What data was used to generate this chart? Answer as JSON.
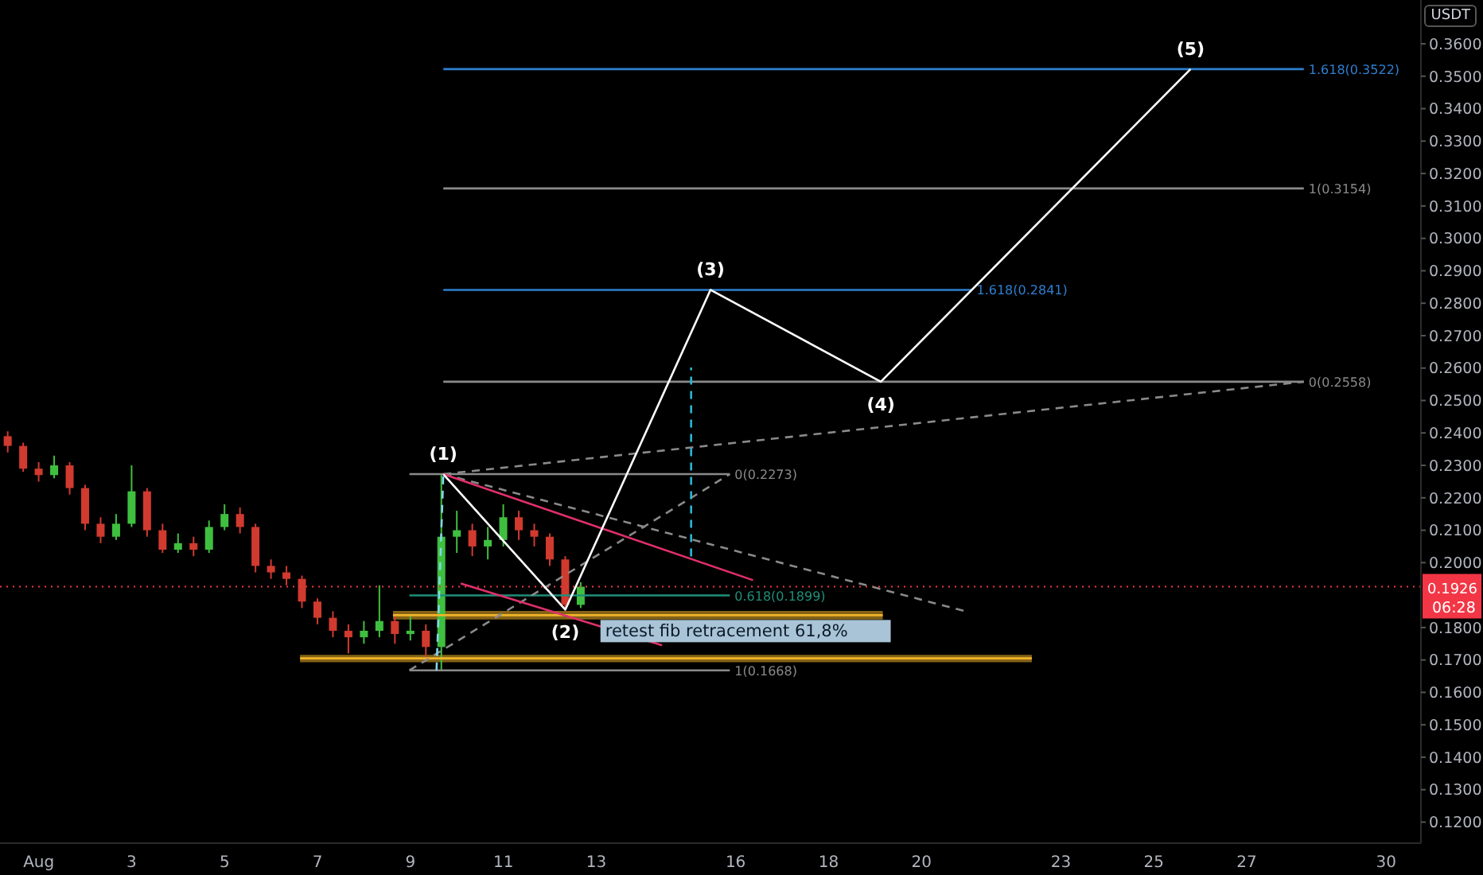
{
  "chart_data": {
    "type": "candlestick",
    "ylabel": "USDT",
    "x": [
      "--07-31T08:00",
      "--07-31T16:00",
      "--08-01T00:00",
      "--08-01T08:00",
      "--08-01T16:00",
      "--08-02T00:00",
      "--08-02T08:00",
      "--08-02T16:00",
      "--08-03T00:00",
      "--08-03T08:00",
      "--08-03T16:00",
      "--08-04T00:00",
      "--08-04T08:00",
      "--08-04T16:00",
      "--08-05T00:00",
      "--08-05T08:00",
      "--08-05T16:00",
      "--08-06T00:00",
      "--08-06T08:00",
      "--08-06T16:00",
      "--08-07T00:00",
      "--08-07T08:00",
      "--08-07T16:00",
      "--08-08T00:00",
      "--08-08T08:00",
      "--08-08T16:00",
      "--08-09T00:00",
      "--08-09T08:00",
      "--08-09T16:00",
      "--08-10T00:00",
      "--08-10T08:00",
      "--08-10T16:00",
      "--08-11T00:00",
      "--08-11T08:00",
      "--08-11T16:00",
      "--08-12T00:00",
      "--08-12T08:00",
      "--08-12T16:00"
    ],
    "ohlc": [
      [
        0.239,
        0.2405,
        0.234,
        0.236
      ],
      [
        0.236,
        0.237,
        0.228,
        0.229
      ],
      [
        0.229,
        0.231,
        0.225,
        0.227
      ],
      [
        0.227,
        0.233,
        0.226,
        0.23
      ],
      [
        0.23,
        0.231,
        0.221,
        0.223
      ],
      [
        0.223,
        0.224,
        0.21,
        0.212
      ],
      [
        0.212,
        0.214,
        0.206,
        0.208
      ],
      [
        0.208,
        0.215,
        0.207,
        0.212
      ],
      [
        0.212,
        0.23,
        0.211,
        0.222
      ],
      [
        0.222,
        0.223,
        0.208,
        0.21
      ],
      [
        0.21,
        0.212,
        0.203,
        0.204
      ],
      [
        0.204,
        0.209,
        0.203,
        0.206
      ],
      [
        0.206,
        0.208,
        0.202,
        0.204
      ],
      [
        0.204,
        0.213,
        0.203,
        0.211
      ],
      [
        0.211,
        0.218,
        0.21,
        0.215
      ],
      [
        0.215,
        0.217,
        0.209,
        0.211
      ],
      [
        0.211,
        0.212,
        0.197,
        0.199
      ],
      [
        0.199,
        0.201,
        0.195,
        0.197
      ],
      [
        0.197,
        0.199,
        0.193,
        0.195
      ],
      [
        0.195,
        0.196,
        0.186,
        0.188
      ],
      [
        0.188,
        0.189,
        0.181,
        0.183
      ],
      [
        0.183,
        0.185,
        0.177,
        0.179
      ],
      [
        0.179,
        0.181,
        0.172,
        0.177
      ],
      [
        0.177,
        0.182,
        0.175,
        0.179
      ],
      [
        0.179,
        0.193,
        0.177,
        0.182
      ],
      [
        0.182,
        0.184,
        0.175,
        0.178
      ],
      [
        0.178,
        0.184,
        0.176,
        0.179
      ],
      [
        0.179,
        0.181,
        0.17,
        0.174
      ],
      [
        0.174,
        0.2273,
        0.1668,
        0.208
      ],
      [
        0.208,
        0.216,
        0.203,
        0.21
      ],
      [
        0.21,
        0.212,
        0.202,
        0.205
      ],
      [
        0.205,
        0.211,
        0.201,
        0.207
      ],
      [
        0.207,
        0.218,
        0.205,
        0.214
      ],
      [
        0.214,
        0.216,
        0.207,
        0.21
      ],
      [
        0.21,
        0.212,
        0.205,
        0.208
      ],
      [
        0.208,
        0.209,
        0.199,
        0.201
      ],
      [
        0.201,
        0.202,
        0.1855,
        0.187
      ],
      [
        0.187,
        0.194,
        0.186,
        0.1926
      ]
    ],
    "colors": [
      "#d03a2f",
      "#d03a2f",
      "#d03a2f",
      "#3fbf3f",
      "#d03a2f",
      "#d03a2f",
      "#d03a2f",
      "#3fbf3f",
      "#3fbf3f",
      "#d03a2f",
      "#d03a2f",
      "#3fbf3f",
      "#d03a2f",
      "#3fbf3f",
      "#3fbf3f",
      "#d03a2f",
      "#d03a2f",
      "#d03a2f",
      "#d03a2f",
      "#d03a2f",
      "#d03a2f",
      "#d03a2f",
      "#d03a2f",
      "#3fbf3f",
      "#3fbf3f",
      "#d03a2f",
      "#3fbf3f",
      "#d03a2f",
      "#3fbf3f",
      "#3fbf3f",
      "#d03a2f",
      "#3fbf3f",
      "#3fbf3f",
      "#d03a2f",
      "#d03a2f",
      "#d03a2f",
      "#d03a2f",
      "#3fbf3f"
    ],
    "series": [
      {
        "type": "line",
        "color": "#f0b429",
        "line_style": "solid",
        "x": [
          "--08-06T15:00",
          "--08-22T09:00"
        ],
        "values": [
          0.1705,
          0.1705
        ],
        "lower": [
          0.1693,
          0.1693
        ],
        "upper": [
          0.1716,
          0.1716
        ]
      },
      {
        "type": "line",
        "color": "#f0b429",
        "line_style": "solid",
        "x": [
          "--08-08T15:00",
          "--08-19T04:00"
        ],
        "values": [
          0.1838,
          0.1838
        ],
        "lower": [
          0.1825,
          0.1825
        ],
        "upper": [
          0.1851,
          0.1851
        ]
      },
      {
        "type": "line",
        "color": "#2f7fd0",
        "line_style": "solid",
        "x": [
          "--08-09T17:00",
          "--08-28T05:30"
        ],
        "values": [
          0.3522,
          0.3522
        ],
        "value_labels": [
          null,
          "1.618(0.3522)"
        ]
      },
      {
        "type": "line",
        "color": "#8a8a8a",
        "line_style": "solid",
        "x": [
          "--08-09T17:00",
          "--08-28T05:30"
        ],
        "values": [
          0.3154,
          0.3154
        ],
        "value_labels": [
          null,
          "1(0.3154)"
        ]
      },
      {
        "type": "line",
        "color": "#2f7fd0",
        "line_style": "solid",
        "x": [
          "--08-09T17:00",
          "--08-21T02:00"
        ],
        "values": [
          0.2841,
          0.2841
        ],
        "value_labels": [
          null,
          "1.618(0.2841)"
        ]
      },
      {
        "type": "line",
        "color": "#8a8a8a",
        "line_style": "solid",
        "x": [
          "--08-09T17:00",
          "--08-28T05:30"
        ],
        "values": [
          0.2558,
          0.2558
        ],
        "value_labels": [
          null,
          "0(0.2558)"
        ]
      },
      {
        "type": "line",
        "color": "#8a8a8a",
        "line_style": "solid",
        "x": [
          "--08-08T23:30",
          "--08-15T21:00"
        ],
        "values": [
          0.2273,
          0.2273
        ],
        "value_labels": [
          null,
          "0(0.2273)"
        ]
      },
      {
        "type": "line",
        "color": "#1f8f7a",
        "line_style": "solid",
        "x": [
          "--08-08T23:30",
          "--08-15T21:00"
        ],
        "values": [
          0.1899,
          0.1899
        ],
        "value_labels": [
          null,
          "0.618(0.1899)"
        ]
      },
      {
        "type": "line",
        "color": "#8a8a8a",
        "line_style": "solid",
        "x": [
          "--08-08T23:30",
          "--08-15T21:00"
        ],
        "values": [
          0.1668,
          0.1668
        ],
        "value_labels": [
          null,
          "1(0.1668)"
        ]
      },
      {
        "type": "line",
        "color": "#8a8a8a",
        "line_style": "dashed",
        "x": [
          "--08-09T17:00",
          "--08-28T05:30"
        ],
        "values": [
          0.2273,
          0.2558
        ]
      },
      {
        "type": "line",
        "color": "#8a8a8a",
        "line_style": "dashed",
        "x": [
          "--08-09T17:00",
          "--08-21T00:00"
        ],
        "values": [
          0.2273,
          0.1848
        ]
      },
      {
        "type": "line",
        "color": "#8a8a8a",
        "line_style": "dashed",
        "x": [
          "--08-08T23:30",
          "--08-15T21:00"
        ],
        "values": [
          0.1668,
          0.2273
        ]
      },
      {
        "type": "line",
        "color": "#e0306a",
        "line_style": "solid",
        "x": [
          "--08-09T17:00",
          "--08-16T09:00"
        ],
        "values": [
          0.2273,
          0.1946
        ]
      },
      {
        "type": "line",
        "color": "#e0306a",
        "line_style": "solid",
        "x": [
          "--08-10T02:00",
          "--08-14T10:00"
        ],
        "values": [
          0.1936,
          0.1745
        ]
      },
      {
        "type": "line",
        "color": "#2ab7d6",
        "line_style": "dashed",
        "x": [
          "--08-15T01:00",
          "--08-15T01:00"
        ],
        "values": [
          0.2019,
          0.2602
        ]
      },
      {
        "type": "line",
        "color": "#7fd8e8",
        "line_style": "dashed",
        "x": [
          "--08-09T13:30",
          "--08-09T17:00"
        ],
        "values": [
          0.1668,
          0.2273
        ]
      },
      {
        "type": "line",
        "color": "#ffffff",
        "line_style": "solid",
        "x": [
          "--08-09T17:00",
          "--08-12T08:00",
          "--08-15T11:00",
          "--08-19T03:00",
          "--08-25T19:00"
        ],
        "values": [
          0.2273,
          0.1855,
          0.2841,
          0.2558,
          0.3522
        ]
      }
    ],
    "annotations": [
      {
        "text": "(1)",
        "x": "--08-09T17:00",
        "y": 0.2273
      },
      {
        "text": "(2)",
        "x": "--08-12T08:00",
        "y": 0.1855
      },
      {
        "text": "(3)",
        "x": "--08-15T11:00",
        "y": 0.2841
      },
      {
        "text": "(4)",
        "x": "--08-19T03:00",
        "y": 0.2558
      },
      {
        "text": "(5)",
        "x": "--08-25T19:00",
        "y": 0.3522
      },
      {
        "text": "retest fib retracement 61,8%",
        "x": "--08-13T03:00",
        "y": 0.1789
      },
      "06:28"
    ],
    "ref_lines": [
      {
        "axis": "y",
        "value": 0.1926,
        "label": "0.1926",
        "color": "#f23645",
        "line_style": "dotted"
      }
    ],
    "xlim": [
      "--07-31T04:00",
      "--08-30T18:00"
    ],
    "xticks": [
      {
        "value": "--08-01",
        "label": "Aug"
      },
      {
        "value": "--08-03",
        "label": "3"
      },
      {
        "value": "--08-05",
        "label": "5"
      },
      {
        "value": "--08-07",
        "label": "7"
      },
      {
        "value": "--08-09",
        "label": "9"
      },
      {
        "value": "--08-11",
        "label": "11"
      },
      {
        "value": "--08-13",
        "label": "13"
      },
      {
        "value": "--08-16",
        "label": "16"
      },
      {
        "value": "--08-18",
        "label": "18"
      },
      {
        "value": "--08-20",
        "label": "20"
      },
      {
        "value": "--08-23",
        "label": "23"
      },
      {
        "value": "--08-25",
        "label": "25"
      },
      {
        "value": "--08-27",
        "label": "27"
      },
      {
        "value": "--08-30",
        "label": "30"
      }
    ],
    "ylim": [
      0.1135,
      0.3735
    ],
    "yticks": [
      {
        "value": 0.12,
        "label": "0.1200"
      },
      {
        "value": 0.13,
        "label": "0.1300"
      },
      {
        "value": 0.14,
        "label": "0.1400"
      },
      {
        "value": 0.15,
        "label": "0.1500"
      },
      {
        "value": 0.16,
        "label": "0.1600"
      },
      {
        "value": 0.17,
        "label": "0.1700"
      },
      {
        "value": 0.18,
        "label": "0.1800"
      },
      {
        "value": 0.2,
        "label": "0.2000"
      },
      {
        "value": 0.21,
        "label": "0.2100"
      },
      {
        "value": 0.22,
        "label": "0.2200"
      },
      {
        "value": 0.23,
        "label": "0.2300"
      },
      {
        "value": 0.24,
        "label": "0.2400"
      },
      {
        "value": 0.25,
        "label": "0.2500"
      },
      {
        "value": 0.26,
        "label": "0.2600"
      },
      {
        "value": 0.27,
        "label": "0.2700"
      },
      {
        "value": 0.28,
        "label": "0.2800"
      },
      {
        "value": 0.29,
        "label": "0.2900"
      },
      {
        "value": 0.3,
        "label": "0.3000"
      },
      {
        "value": 0.31,
        "label": "0.3100"
      },
      {
        "value": 0.32,
        "label": "0.3200"
      },
      {
        "value": 0.33,
        "label": "0.3300"
      },
      {
        "value": 0.34,
        "label": "0.3400"
      },
      {
        "value": 0.35,
        "label": "0.3500"
      },
      {
        "value": 0.36,
        "label": "0.3600"
      }
    ]
  }
}
